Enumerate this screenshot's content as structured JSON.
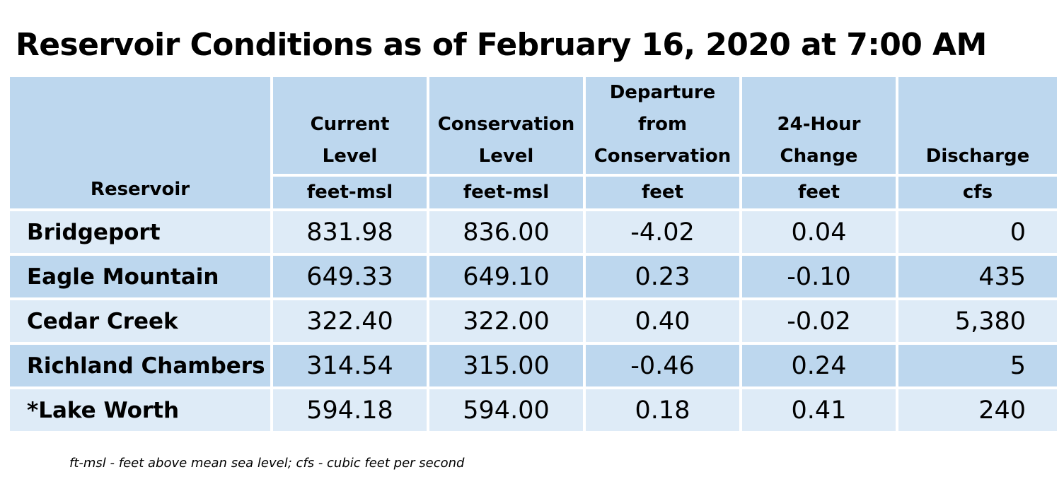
{
  "title": "Reservoir Conditions as of February 16, 2020 at 7:00 AM",
  "headers": {
    "reservoir": "Reservoir",
    "current_level": [
      "Current",
      "Level"
    ],
    "conservation_level": [
      "Conservation",
      "Level"
    ],
    "departure": [
      "Departure",
      "from",
      "Conservation"
    ],
    "change_24h": [
      "24-Hour",
      "Change"
    ],
    "discharge": "Discharge"
  },
  "units": {
    "current_level": "feet-msl",
    "conservation_level": "feet-msl",
    "departure": "feet",
    "change_24h": "feet",
    "discharge": "cfs"
  },
  "rows": [
    {
      "name": "Bridgeport",
      "current": "831.98",
      "conservation": "836.00",
      "departure": "-4.02",
      "change": "0.04",
      "discharge": "0"
    },
    {
      "name": "Eagle Mountain",
      "current": "649.33",
      "conservation": "649.10",
      "departure": "0.23",
      "change": "-0.10",
      "discharge": "435"
    },
    {
      "name": "Cedar Creek",
      "current": "322.40",
      "conservation": "322.00",
      "departure": "0.40",
      "change": "-0.02",
      "discharge": "5,380"
    },
    {
      "name": "Richland Chambers",
      "current": "314.54",
      "conservation": "315.00",
      "departure": "-0.46",
      "change": "0.24",
      "discharge": "5"
    },
    {
      "name": "*Lake Worth",
      "current": "594.18",
      "conservation": "594.00",
      "departure": "0.18",
      "change": "0.41",
      "discharge": "240"
    }
  ],
  "footnote": "ft-msl - feet above mean sea level; cfs - cubic feet per second",
  "colors": {
    "header_bg": "#bdd7ee",
    "row_light": "#deebf7",
    "row_dark": "#bdd7ee"
  }
}
